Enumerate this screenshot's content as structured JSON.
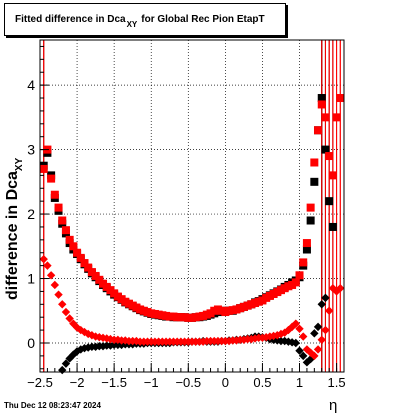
{
  "title": {
    "main": "Fitted difference in Dca",
    "subscript": "XY",
    "rest": "for Global Rec Pion EtapT"
  },
  "ylabel": {
    "main": "difference in Dca",
    "subscript": "XY"
  },
  "xlabel": "η",
  "footer": "Thu Dec 12 08:23:47 2024",
  "colors": {
    "series_black": "#000000",
    "series_red": "#ff0000"
  },
  "chart_data": {
    "type": "scatter",
    "xlim": [
      -2.5,
      1.6
    ],
    "ylim": [
      -0.45,
      4.7
    ],
    "xticks": [
      -2.5,
      -2,
      -1.5,
      -1,
      -0.5,
      0,
      0.5,
      1,
      1.5
    ],
    "xtick_labels": [
      "−2.5",
      "−2",
      "−1.5",
      "−1",
      "−0.5",
      "0",
      "0.5",
      "1",
      "1.5"
    ],
    "yticks": [
      0,
      1,
      2,
      3,
      4
    ],
    "ytick_labels": [
      "0",
      "1",
      "2",
      "3",
      "4"
    ],
    "grid": true,
    "series": [
      {
        "color": "#000000",
        "marker": "square",
        "x": [
          -2.45,
          -2.4,
          -2.35,
          -2.3,
          -2.25,
          -2.2,
          -2.15,
          -2.1,
          -2.05,
          -2.0,
          -1.95,
          -1.9,
          -1.85,
          -1.8,
          -1.75,
          -1.7,
          -1.65,
          -1.6,
          -1.55,
          -1.5,
          -1.45,
          -1.4,
          -1.35,
          -1.3,
          -1.25,
          -1.2,
          -1.15,
          -1.1,
          -1.05,
          -1.0,
          -0.95,
          -0.9,
          -0.85,
          -0.8,
          -0.75,
          -0.7,
          -0.65,
          -0.6,
          -0.55,
          -0.5,
          -0.45,
          -0.4,
          -0.35,
          -0.3,
          -0.25,
          -0.2,
          -0.15,
          -0.1,
          -0.05,
          0.0,
          0.05,
          0.1,
          0.15,
          0.2,
          0.25,
          0.3,
          0.35,
          0.4,
          0.45,
          0.5,
          0.55,
          0.6,
          0.65,
          0.7,
          0.75,
          0.8,
          0.85,
          0.9,
          0.95,
          1.0,
          1.05,
          1.1,
          1.15,
          1.2,
          1.25,
          1.3,
          1.35,
          1.4,
          1.45
        ],
        "y": [
          2.75,
          2.95,
          2.6,
          2.25,
          2.05,
          1.85,
          1.7,
          1.55,
          1.45,
          1.38,
          1.3,
          1.22,
          1.15,
          1.08,
          1.02,
          0.96,
          0.9,
          0.85,
          0.8,
          0.75,
          0.71,
          0.67,
          0.63,
          0.6,
          0.57,
          0.54,
          0.51,
          0.49,
          0.47,
          0.45,
          0.44,
          0.43,
          0.42,
          0.41,
          0.41,
          0.4,
          0.4,
          0.4,
          0.4,
          0.39,
          0.39,
          0.4,
          0.4,
          0.41,
          0.42,
          0.44,
          0.46,
          0.48,
          0.49,
          0.5,
          0.5,
          0.5,
          0.52,
          0.54,
          0.56,
          0.58,
          0.6,
          0.63,
          0.65,
          0.68,
          0.71,
          0.74,
          0.77,
          0.8,
          0.83,
          0.87,
          0.9,
          0.94,
          0.97,
          1.02,
          1.2,
          1.45,
          1.9,
          2.5,
          3.3,
          3.8,
          3.0,
          2.2,
          1.8
        ]
      },
      {
        "color": "#ff0000",
        "marker": "square",
        "x": [
          -2.45,
          -2.4,
          -2.35,
          -2.3,
          -2.25,
          -2.2,
          -2.15,
          -2.1,
          -2.05,
          -2.0,
          -1.95,
          -1.9,
          -1.85,
          -1.8,
          -1.75,
          -1.7,
          -1.65,
          -1.6,
          -1.55,
          -1.5,
          -1.45,
          -1.4,
          -1.35,
          -1.3,
          -1.25,
          -1.2,
          -1.15,
          -1.1,
          -1.05,
          -1.0,
          -0.95,
          -0.9,
          -0.85,
          -0.8,
          -0.75,
          -0.7,
          -0.65,
          -0.6,
          -0.55,
          -0.5,
          -0.45,
          -0.4,
          -0.35,
          -0.3,
          -0.25,
          -0.2,
          -0.15,
          -0.1,
          -0.05,
          0.0,
          0.05,
          0.1,
          0.15,
          0.2,
          0.25,
          0.3,
          0.35,
          0.4,
          0.45,
          0.5,
          0.55,
          0.6,
          0.65,
          0.7,
          0.75,
          0.8,
          0.85,
          0.9,
          0.95,
          1.0,
          1.05,
          1.1,
          1.15,
          1.2,
          1.25,
          1.3,
          1.35,
          1.4,
          1.45,
          1.5,
          1.55
        ],
        "y": [
          2.7,
          3.0,
          2.55,
          2.3,
          2.1,
          1.9,
          1.75,
          1.6,
          1.5,
          1.4,
          1.32,
          1.24,
          1.17,
          1.1,
          1.04,
          0.98,
          0.92,
          0.87,
          0.82,
          0.77,
          0.72,
          0.68,
          0.64,
          0.61,
          0.58,
          0.55,
          0.52,
          0.5,
          0.48,
          0.46,
          0.45,
          0.44,
          0.43,
          0.42,
          0.41,
          0.41,
          0.4,
          0.4,
          0.4,
          0.39,
          0.39,
          0.4,
          0.41,
          0.42,
          0.44,
          0.46,
          0.5,
          0.52,
          0.5,
          0.48,
          0.5,
          0.51,
          0.52,
          0.54,
          0.56,
          0.58,
          0.6,
          0.62,
          0.64,
          0.66,
          0.7,
          0.73,
          0.76,
          0.79,
          0.82,
          0.85,
          0.88,
          0.9,
          0.94,
          1.05,
          1.25,
          1.55,
          2.1,
          2.8,
          3.3,
          3.7,
          3.5,
          2.9,
          2.6,
          3.5,
          3.8
        ]
      },
      {
        "color": "#000000",
        "marker": "diamond",
        "x": [
          -2.2,
          -2.15,
          -2.1,
          -2.05,
          -2.0,
          -1.95,
          -1.9,
          -1.85,
          -1.8,
          -1.75,
          -1.7,
          -1.65,
          -1.6,
          -1.55,
          -1.5,
          -1.45,
          -1.4,
          -1.35,
          -1.3,
          -1.25,
          -1.2,
          -1.15,
          -1.1,
          -1.05,
          -1.0,
          -0.95,
          -0.9,
          -0.85,
          -0.8,
          -0.75,
          -0.7,
          -0.65,
          -0.6,
          -0.55,
          -0.5,
          -0.45,
          -0.4,
          -0.35,
          -0.3,
          -0.25,
          -0.2,
          -0.15,
          -0.1,
          -0.05,
          0.0,
          0.05,
          0.1,
          0.15,
          0.2,
          0.25,
          0.3,
          0.35,
          0.4,
          0.45,
          0.5,
          0.55,
          0.6,
          0.65,
          0.7,
          0.75,
          0.8,
          0.85,
          0.9,
          0.95,
          1.0,
          1.05,
          1.1,
          1.15,
          1.2,
          1.25,
          1.3,
          1.35
        ],
        "y": [
          -0.42,
          -0.32,
          -0.24,
          -0.18,
          -0.13,
          -0.1,
          -0.08,
          -0.07,
          -0.06,
          -0.06,
          -0.05,
          -0.05,
          -0.04,
          -0.04,
          -0.03,
          -0.03,
          -0.03,
          -0.02,
          -0.02,
          -0.02,
          -0.01,
          -0.01,
          -0.01,
          0.0,
          0.0,
          0.0,
          0.0,
          0.0,
          0.0,
          0.0,
          0.01,
          0.01,
          0.01,
          0.01,
          0.01,
          0.02,
          0.02,
          0.02,
          0.03,
          0.02,
          0.02,
          0.02,
          0.02,
          0.03,
          0.03,
          0.04,
          0.04,
          0.05,
          0.05,
          0.06,
          0.07,
          0.08,
          0.1,
          0.1,
          0.09,
          0.08,
          0.06,
          0.05,
          0.04,
          0.03,
          0.03,
          0.02,
          0.01,
          0.0,
          -0.12,
          -0.2,
          -0.3,
          -0.25,
          0.15,
          0.25,
          0.6,
          0.7
        ]
      },
      {
        "color": "#ff0000",
        "marker": "diamond",
        "x": [
          -2.45,
          -2.4,
          -2.35,
          -2.3,
          -2.25,
          -2.2,
          -2.15,
          -2.1,
          -2.05,
          -2.0,
          -1.95,
          -1.9,
          -1.85,
          -1.8,
          -1.75,
          -1.7,
          -1.65,
          -1.6,
          -1.55,
          -1.5,
          -1.45,
          -1.4,
          -1.35,
          -1.3,
          -1.25,
          -1.2,
          -1.15,
          -1.1,
          -1.05,
          -1.0,
          -0.95,
          -0.9,
          -0.85,
          -0.8,
          -0.75,
          -0.7,
          -0.65,
          -0.6,
          -0.55,
          -0.5,
          -0.45,
          -0.4,
          -0.35,
          -0.3,
          -0.25,
          -0.2,
          -0.15,
          -0.1,
          -0.05,
          0.0,
          0.05,
          0.1,
          0.15,
          0.2,
          0.25,
          0.3,
          0.35,
          0.4,
          0.45,
          0.5,
          0.55,
          0.6,
          0.65,
          0.7,
          0.75,
          0.8,
          0.85,
          0.9,
          0.95,
          1.0,
          1.05,
          1.1,
          1.15,
          1.2,
          1.25,
          1.3,
          1.35,
          1.4,
          1.45,
          1.5,
          1.55
        ],
        "y": [
          1.3,
          1.2,
          1.05,
          0.9,
          0.75,
          0.6,
          0.48,
          0.38,
          0.3,
          0.24,
          0.2,
          0.17,
          0.14,
          0.12,
          0.1,
          0.09,
          0.08,
          0.07,
          0.06,
          0.05,
          0.05,
          0.04,
          0.04,
          0.03,
          0.03,
          0.03,
          0.02,
          0.02,
          0.02,
          0.02,
          0.02,
          0.02,
          0.02,
          0.02,
          0.02,
          0.02,
          0.02,
          0.02,
          0.02,
          0.02,
          0.02,
          0.02,
          0.02,
          0.02,
          0.03,
          0.03,
          0.03,
          0.03,
          0.03,
          0.03,
          0.03,
          0.04,
          0.04,
          0.05,
          0.05,
          0.06,
          0.06,
          0.07,
          0.08,
          0.08,
          0.09,
          0.1,
          0.11,
          0.12,
          0.14,
          0.16,
          0.2,
          0.25,
          0.3,
          0.22,
          0.1,
          -0.1,
          -0.15,
          -0.2,
          -0.1,
          0.05,
          0.2,
          0.5,
          0.85,
          0.8,
          0.85
        ]
      }
    ]
  }
}
